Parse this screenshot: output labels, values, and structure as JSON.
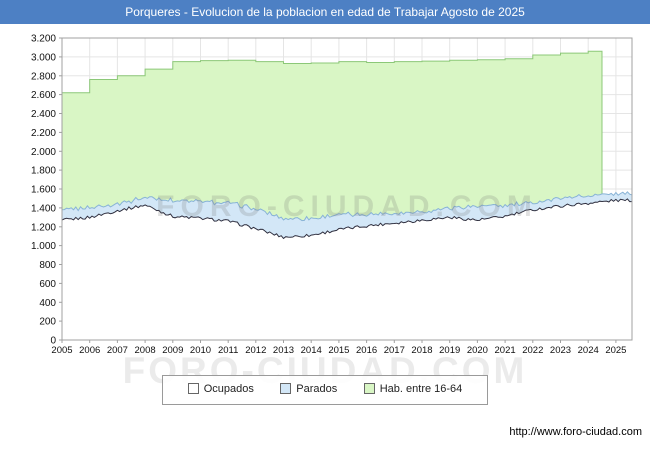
{
  "title": "Porqueres - Evolucion de la poblacion en edad de Trabajar Agosto de 2025",
  "watermark": "FORO-CIUDAD.COM",
  "footer": {
    "url": "http://www.foro-ciudad.com"
  },
  "colors": {
    "title_bar": "#4d80c4",
    "grid": "#e5e5e5",
    "plot_border": "#a0a0a0",
    "axis_text": "#111111"
  },
  "legend": {
    "items": [
      {
        "label": "Ocupados",
        "color": "#ffffff"
      },
      {
        "label": "Parados",
        "color": "#d3e7f7"
      },
      {
        "label": "Hab. entre 16-64",
        "color": "#d9f6c5"
      }
    ]
  },
  "chart_data": {
    "type": "area",
    "title": "Porqueres - Evolucion de la poblacion en edad de Trabajar Agosto de 2025",
    "xlabel": "",
    "ylabel": "",
    "ylim": [
      0,
      3200
    ],
    "y_step": 200,
    "y_ticks": [
      0,
      200,
      400,
      600,
      800,
      1000,
      1200,
      1400,
      1600,
      1800,
      2000,
      2200,
      2400,
      2600,
      2800,
      3000,
      3200
    ],
    "x_ticks": [
      2005,
      2006,
      2007,
      2008,
      2009,
      2010,
      2011,
      2012,
      2013,
      2014,
      2015,
      2016,
      2017,
      2018,
      2019,
      2020,
      2021,
      2022,
      2023,
      2024,
      2025
    ],
    "x_start": 2005,
    "x_end": 2025.583,
    "grid": true,
    "legend_position": "bottom",
    "series": [
      {
        "name": "Hab. entre 16-64",
        "type": "step-area",
        "fill": "#d9f6c5",
        "stroke": "#8cc878",
        "years_start": 2005,
        "ends_at": 2024.5,
        "values": [
          2620,
          2760,
          2800,
          2870,
          2950,
          2960,
          2965,
          2950,
          2930,
          2935,
          2950,
          2940,
          2950,
          2955,
          2965,
          2970,
          2980,
          3020,
          3040,
          3060
        ]
      },
      {
        "name": "Parados",
        "type": "band-above-ocupados",
        "fill": "#d3e7f7",
        "stroke": "#88b3d6",
        "years_start": 2005,
        "values": [
          110,
          100,
          70,
          80,
          170,
          180,
          190,
          210,
          200,
          180,
          160,
          120,
          100,
          90,
          100,
          150,
          110,
          80,
          80,
          80,
          70
        ]
      },
      {
        "name": "Ocupados",
        "type": "area",
        "fill": "#ffffff",
        "stroke": "#2f2f3f",
        "years_start": 2005,
        "values": [
          1270,
          1300,
          1370,
          1430,
          1310,
          1290,
          1260,
          1180,
          1090,
          1110,
          1170,
          1210,
          1240,
          1270,
          1300,
          1270,
          1310,
          1380,
          1420,
          1450,
          1480
        ]
      }
    ]
  }
}
